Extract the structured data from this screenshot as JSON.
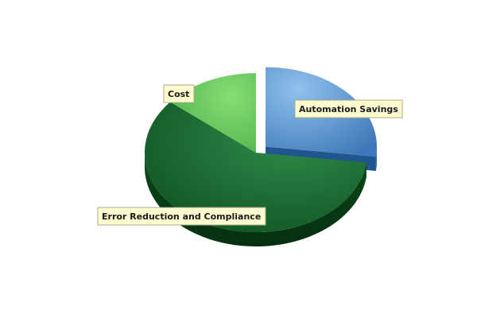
{
  "chart_data": {
    "type": "pie",
    "style": "3d-exploded",
    "title": "",
    "legend": "none",
    "slices": [
      {
        "label": "Automation Savings",
        "value": 27,
        "color": "#5b9ad8",
        "exploded": true
      },
      {
        "label": "Error Reduction and Compliance",
        "value": 59,
        "color": "#1d7a3a",
        "exploded": false
      },
      {
        "label": "Cost",
        "value": 14,
        "color": "#66cc55",
        "exploded": false
      }
    ]
  }
}
